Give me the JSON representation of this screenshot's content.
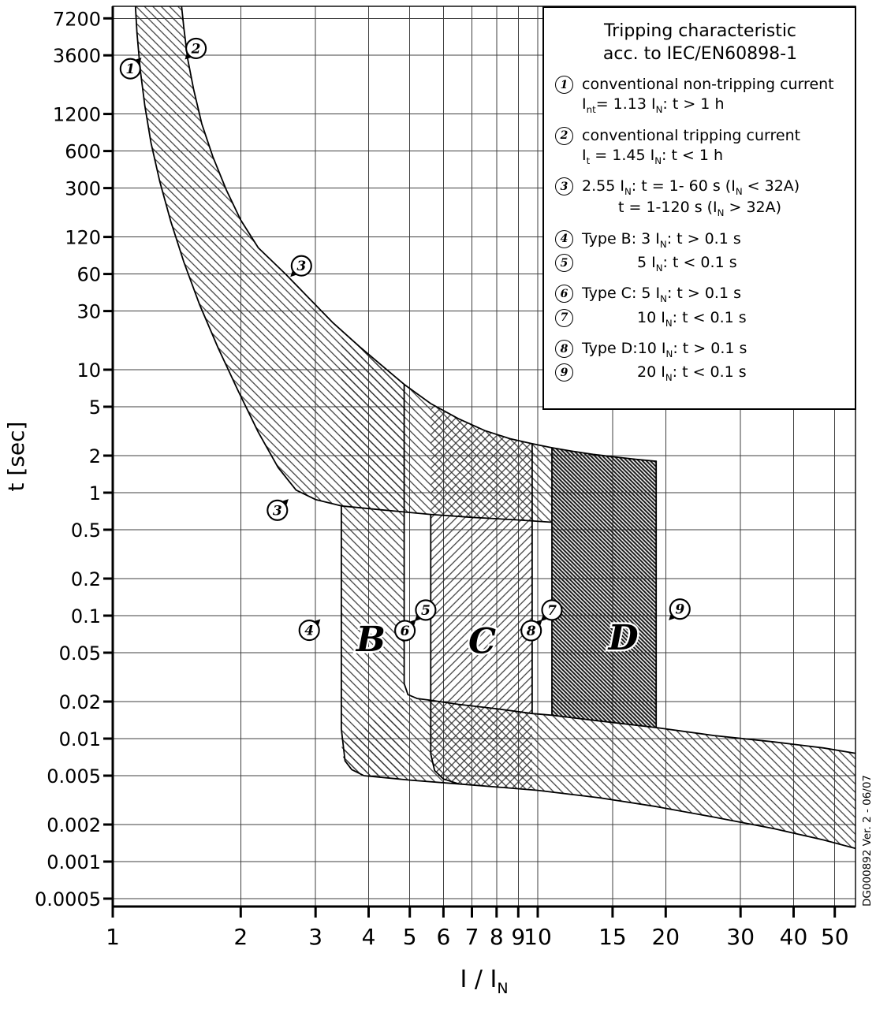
{
  "colors": {
    "ink": "#000000",
    "grid": "#3f3f3f",
    "hatch": "#2c2c2c",
    "hatch_dark": "#141414"
  },
  "figure": {
    "watermark": "DG000892 Ver. 2 - 06/07"
  },
  "axes": {
    "x_label": "I / I_N",
    "y_label": "t [sec]",
    "x_ticks": [
      1,
      2,
      3,
      4,
      5,
      6,
      7,
      8,
      9,
      10,
      15,
      20,
      30,
      40,
      50
    ],
    "y_ticks": [
      7200,
      3600,
      1200,
      600,
      300,
      120,
      60,
      30,
      10,
      5,
      2,
      1,
      0.5,
      0.2,
      0.1,
      0.05,
      0.02,
      0.01,
      0.005,
      0.002,
      0.001,
      0.0005
    ]
  },
  "legend": {
    "title_line1": "Tripping characteristic",
    "title_line2": "acc. to IEC/EN60898-1",
    "items": [
      {
        "num": "1",
        "lines": [
          "conventional non-tripping current",
          "I_nt= 1.13 I_N: t > 1 h"
        ]
      },
      {
        "num": "2",
        "lines": [
          "conventional tripping current",
          "I_t = 1.45 I_N: t < 1 h"
        ]
      },
      {
        "num": "3",
        "lines": [
          "2.55 I_N: t = 1- 60 s (I_N < 32A)",
          "t = 1-120 s (I_N > 32A)"
        ],
        "indent2": true
      },
      {
        "num": "4",
        "lines": [
          "Type B: 3 I_N: t > 0.1 s"
        ]
      },
      {
        "num": "5",
        "lines": [
          "5 I_N: t < 0.1 s"
        ],
        "tight": true,
        "indent": true
      },
      {
        "num": "6",
        "lines": [
          "Type C: 5 I_N: t > 0.1 s"
        ]
      },
      {
        "num": "7",
        "lines": [
          "10 I_N: t < 0.1 s"
        ],
        "tight": true,
        "indent": true
      },
      {
        "num": "8",
        "lines": [
          "Type D:10 I_N: t > 0.1 s"
        ]
      },
      {
        "num": "9",
        "lines": [
          "20 I_N: t < 0.1 s"
        ],
        "tight": true,
        "indent": true
      }
    ]
  },
  "chart_data": {
    "type": "area",
    "title": "Tripping characteristic acc. to IEC/EN60898-1",
    "xlabel": "I / I_N",
    "ylabel": "t [sec]",
    "xscale": "log",
    "yscale": "log",
    "xlim": [
      1,
      55.9
    ],
    "ylim": [
      0.00045,
      9000
    ],
    "x_ticks": [
      1,
      2,
      3,
      4,
      5,
      6,
      7,
      8,
      9,
      10,
      15,
      20,
      30,
      40,
      50
    ],
    "y_ticks": [
      7200,
      3600,
      1200,
      600,
      300,
      120,
      60,
      30,
      10,
      5,
      2,
      1,
      0.5,
      0.2,
      0.1,
      0.05,
      0.02,
      0.01,
      0.005,
      0.002,
      0.001,
      0.0005
    ],
    "thermal_limits": {
      "non_tripping_multiple": 1.13,
      "tripping_multiple": 1.45,
      "conventional_time": "1 h",
      "test_2_55": {
        "multiple": 2.55,
        "time_le_32A": "1-60 s",
        "time_gt_32A": "1-120 s"
      }
    },
    "breaker_types": [
      {
        "type": "B",
        "magnetic_range_multiple": [
          3,
          5
        ],
        "instantaneous": "t < 0.1 s above 5 In"
      },
      {
        "type": "C",
        "magnetic_range_multiple": [
          5,
          10
        ],
        "instantaneous": "t < 0.1 s above 10 In"
      },
      {
        "type": "D",
        "magnetic_range_multiple": [
          10,
          20
        ],
        "instantaneous": "t < 0.1 s above 20 In"
      }
    ],
    "curves": {
      "upper_tripping_limit": [
        [
          1.45,
          9400
        ],
        [
          1.47,
          6000
        ],
        [
          1.5,
          3400
        ],
        [
          1.55,
          1900
        ],
        [
          1.62,
          1000
        ],
        [
          1.72,
          540
        ],
        [
          1.85,
          290
        ],
        [
          2.0,
          165
        ],
        [
          2.2,
          98
        ],
        [
          2.55,
          60
        ],
        [
          2.9,
          38
        ],
        [
          3.3,
          24
        ],
        [
          3.8,
          15.5
        ],
        [
          4.3,
          10.8
        ],
        [
          4.85,
          7.6
        ],
        [
          5.6,
          5.3
        ],
        [
          6.5,
          4.0
        ],
        [
          7.5,
          3.2
        ],
        [
          8.6,
          2.75
        ],
        [
          9.7,
          2.5
        ],
        [
          10.8,
          2.32
        ],
        [
          12,
          2.18
        ],
        [
          13.5,
          2.05
        ],
        [
          15,
          1.96
        ],
        [
          17,
          1.87
        ],
        [
          19,
          1.8
        ]
      ],
      "lower_non_tripping_limit": [
        [
          1.13,
          9400
        ],
        [
          1.14,
          5500
        ],
        [
          1.16,
          2800
        ],
        [
          1.19,
          1400
        ],
        [
          1.23,
          700
        ],
        [
          1.29,
          340
        ],
        [
          1.37,
          160
        ],
        [
          1.47,
          75
        ],
        [
          1.6,
          34
        ],
        [
          1.77,
          15
        ],
        [
          1.97,
          6.8
        ],
        [
          2.2,
          3.1
        ],
        [
          2.45,
          1.6
        ],
        [
          2.7,
          1.05
        ],
        [
          3.0,
          0.88
        ],
        [
          3.45,
          0.78
        ],
        [
          4.2,
          0.73
        ],
        [
          5.0,
          0.69
        ],
        [
          5.6,
          0.665
        ],
        [
          7.0,
          0.63
        ],
        [
          9.0,
          0.6
        ],
        [
          10.8,
          0.575
        ]
      ]
    },
    "regions": [
      {
        "name": "thermal-band",
        "pattern": "light",
        "points": [
          [
            1.45,
            9400
          ],
          [
            1.47,
            6000
          ],
          [
            1.5,
            3400
          ],
          [
            1.55,
            1900
          ],
          [
            1.62,
            1000
          ],
          [
            1.72,
            540
          ],
          [
            1.85,
            290
          ],
          [
            2.0,
            165
          ],
          [
            2.2,
            98
          ],
          [
            2.55,
            60
          ],
          [
            2.9,
            38
          ],
          [
            3.3,
            24
          ],
          [
            3.8,
            15.5
          ],
          [
            4.3,
            10.8
          ],
          [
            4.85,
            7.6
          ],
          [
            5.6,
            5.3
          ],
          [
            6.5,
            4.0
          ],
          [
            7.5,
            3.2
          ],
          [
            8.6,
            2.75
          ],
          [
            9.7,
            2.5
          ],
          [
            10.8,
            2.32
          ],
          [
            10.8,
            0.575
          ],
          [
            9.0,
            0.6
          ],
          [
            7.0,
            0.63
          ],
          [
            5.6,
            0.665
          ],
          [
            5.0,
            0.69
          ],
          [
            4.2,
            0.73
          ],
          [
            3.45,
            0.78
          ],
          [
            3.0,
            0.88
          ],
          [
            2.7,
            1.05
          ],
          [
            2.45,
            1.6
          ],
          [
            2.2,
            3.1
          ],
          [
            1.97,
            6.8
          ],
          [
            1.77,
            15
          ],
          [
            1.6,
            34
          ],
          [
            1.47,
            75
          ],
          [
            1.37,
            160
          ],
          [
            1.29,
            340
          ],
          [
            1.23,
            700
          ],
          [
            1.19,
            1400
          ],
          [
            1.16,
            2800
          ],
          [
            1.14,
            5500
          ],
          [
            1.13,
            9400
          ]
        ]
      },
      {
        "name": "band-B",
        "pattern": "light",
        "points": [
          [
            3.45,
            21
          ],
          [
            3.45,
            0.009
          ],
          [
            3.5,
            0.0062
          ],
          [
            3.7,
            0.0052
          ],
          [
            4.0,
            0.0049
          ],
          [
            4.85,
            0.0046
          ],
          [
            4.85,
            7.6
          ],
          [
            4.3,
            10.8
          ],
          [
            3.8,
            15.5
          ],
          [
            3.45,
            21
          ]
        ]
      },
      {
        "name": "instantaneous-band",
        "pattern": "light",
        "points": [
          [
            3.45,
            0.009
          ],
          [
            3.6,
            0.0056
          ],
          [
            3.9,
            0.005
          ],
          [
            5,
            0.0046
          ],
          [
            7,
            0.0042
          ],
          [
            10,
            0.0038
          ],
          [
            14,
            0.0033
          ],
          [
            19,
            0.0028
          ],
          [
            26,
            0.0023
          ],
          [
            36,
            0.00185
          ],
          [
            47,
            0.0015
          ],
          [
            55.9,
            0.00128
          ],
          [
            55.9,
            0.0076
          ],
          [
            47,
            0.0084
          ],
          [
            36,
            0.0094
          ],
          [
            26,
            0.0106
          ],
          [
            19,
            0.0123
          ],
          [
            14,
            0.0139
          ],
          [
            10.8,
            0.0155
          ],
          [
            9.7,
            0.016
          ],
          [
            8,
            0.0175
          ],
          [
            6.5,
            0.019
          ],
          [
            5.6,
            0.0205
          ],
          [
            4.85,
            0.0215
          ],
          [
            3.45,
            0.009
          ]
        ]
      },
      {
        "name": "band-C",
        "pattern": "cross",
        "points": [
          [
            5.6,
            5.3
          ],
          [
            5.6,
            0.008
          ],
          [
            5.7,
            0.0055
          ],
          [
            6.0,
            0.0046
          ],
          [
            6.5,
            0.0043
          ],
          [
            9.7,
            0.0039
          ],
          [
            9.7,
            2.5
          ],
          [
            8.6,
            2.75
          ],
          [
            7.5,
            3.2
          ],
          [
            6.5,
            4.0
          ],
          [
            5.6,
            5.3
          ]
        ]
      },
      {
        "name": "band-D",
        "pattern": "dark",
        "points": [
          [
            10.8,
            2.32
          ],
          [
            10.8,
            0.0155
          ],
          [
            12,
            0.0148
          ],
          [
            14,
            0.0139
          ],
          [
            16,
            0.0131
          ],
          [
            19,
            0.0123
          ],
          [
            19,
            1.8
          ],
          [
            17,
            1.87
          ],
          [
            15,
            1.96
          ],
          [
            13.5,
            2.05
          ],
          [
            12,
            2.18
          ],
          [
            10.8,
            2.32
          ]
        ]
      }
    ],
    "outlines": [
      {
        "name": "upper-limit-curve",
        "points": [
          [
            1.45,
            9400
          ],
          [
            1.47,
            6000
          ],
          [
            1.5,
            3400
          ],
          [
            1.55,
            1900
          ],
          [
            1.62,
            1000
          ],
          [
            1.72,
            540
          ],
          [
            1.85,
            290
          ],
          [
            2.0,
            165
          ],
          [
            2.2,
            98
          ],
          [
            2.55,
            60
          ],
          [
            2.9,
            38
          ],
          [
            3.3,
            24
          ],
          [
            3.8,
            15.5
          ],
          [
            4.3,
            10.8
          ],
          [
            4.85,
            7.6
          ],
          [
            5.6,
            5.3
          ],
          [
            6.5,
            4.0
          ],
          [
            7.5,
            3.2
          ],
          [
            8.6,
            2.75
          ],
          [
            9.7,
            2.5
          ],
          [
            10.8,
            2.32
          ],
          [
            12,
            2.18
          ],
          [
            13.5,
            2.05
          ],
          [
            15,
            1.96
          ],
          [
            17,
            1.87
          ],
          [
            19,
            1.8
          ]
        ]
      },
      {
        "name": "lower-limit-curve",
        "points": [
          [
            1.13,
            9400
          ],
          [
            1.14,
            5500
          ],
          [
            1.16,
            2800
          ],
          [
            1.19,
            1400
          ],
          [
            1.23,
            700
          ],
          [
            1.29,
            340
          ],
          [
            1.37,
            160
          ],
          [
            1.47,
            75
          ],
          [
            1.6,
            34
          ],
          [
            1.77,
            15
          ],
          [
            1.97,
            6.8
          ],
          [
            2.2,
            3.1
          ],
          [
            2.45,
            1.6
          ],
          [
            2.7,
            1.05
          ],
          [
            3.0,
            0.88
          ],
          [
            3.45,
            0.78
          ],
          [
            4.2,
            0.73
          ],
          [
            5.0,
            0.69
          ],
          [
            5.6,
            0.665
          ],
          [
            7.0,
            0.63
          ],
          [
            9.0,
            0.6
          ],
          [
            10.8,
            0.575
          ]
        ]
      },
      {
        "name": "b-lower-edge-and-bottom",
        "points": [
          [
            3.45,
            0.78
          ],
          [
            3.45,
            0.012
          ],
          [
            3.52,
            0.0066
          ],
          [
            3.65,
            0.0056
          ],
          [
            3.9,
            0.005
          ],
          [
            5,
            0.0046
          ],
          [
            7,
            0.0042
          ],
          [
            10,
            0.0038
          ],
          [
            14,
            0.0033
          ],
          [
            19,
            0.0028
          ],
          [
            26,
            0.0023
          ],
          [
            36,
            0.00185
          ],
          [
            47,
            0.0015
          ],
          [
            55.9,
            0.00128
          ]
        ]
      },
      {
        "name": "b-upper-edge-and-bottom-top",
        "points": [
          [
            4.85,
            7.6
          ],
          [
            4.85,
            0.028
          ],
          [
            4.95,
            0.0228
          ],
          [
            5.2,
            0.0212
          ],
          [
            5.6,
            0.0205
          ],
          [
            6.5,
            0.019
          ],
          [
            8,
            0.0175
          ],
          [
            9.7,
            0.016
          ],
          [
            10.8,
            0.0155
          ],
          [
            12,
            0.0148
          ],
          [
            14,
            0.0139
          ],
          [
            19,
            0.0123
          ],
          [
            26,
            0.0106
          ],
          [
            36,
            0.0094
          ],
          [
            47,
            0.0084
          ],
          [
            55.9,
            0.0076
          ]
        ]
      },
      {
        "name": "c-lower-edge",
        "points": [
          [
            5.6,
            0.665
          ],
          [
            5.6,
            0.0075
          ],
          [
            5.72,
            0.0055
          ],
          [
            6.0,
            0.0047
          ],
          [
            6.5,
            0.0043
          ]
        ]
      },
      {
        "name": "c-upper-edge",
        "points": [
          [
            9.7,
            2.5
          ],
          [
            9.7,
            0.016
          ]
        ]
      },
      {
        "name": "d-lower-edge",
        "points": [
          [
            10.8,
            2.32
          ],
          [
            10.8,
            0.0155
          ]
        ]
      },
      {
        "name": "d-upper-edge",
        "points": [
          [
            19,
            1.8
          ],
          [
            19,
            0.0123
          ]
        ]
      }
    ],
    "markers": [
      {
        "num": "1",
        "x": 1.1,
        "t": 2800,
        "flag": "ne"
      },
      {
        "num": "2",
        "x": 1.57,
        "t": 4100,
        "flag": "sw"
      },
      {
        "num": "3",
        "x": 2.78,
        "t": 70,
        "flag": "sw"
      },
      {
        "num": "3",
        "x": 2.44,
        "t": 0.72,
        "flag": "ne"
      },
      {
        "num": "4",
        "x": 2.9,
        "t": 0.076,
        "flag": "ne"
      },
      {
        "num": "5",
        "x": 5.45,
        "t": 0.111,
        "flag": "sw"
      },
      {
        "num": "6",
        "x": 4.87,
        "t": 0.0755,
        "flag": "ne"
      },
      {
        "num": "7",
        "x": 10.8,
        "t": 0.111,
        "flag": "sw"
      },
      {
        "num": "8",
        "x": 9.65,
        "t": 0.0755,
        "flag": "ne"
      },
      {
        "num": "9",
        "x": 21.6,
        "t": 0.113,
        "flag": "sw"
      }
    ],
    "region_labels": [
      {
        "text": "B",
        "x": 4.05,
        "t": 0.065
      },
      {
        "text": "C",
        "x": 7.4,
        "t": 0.063
      },
      {
        "text": "D",
        "x": 15.9,
        "t": 0.067
      }
    ]
  }
}
